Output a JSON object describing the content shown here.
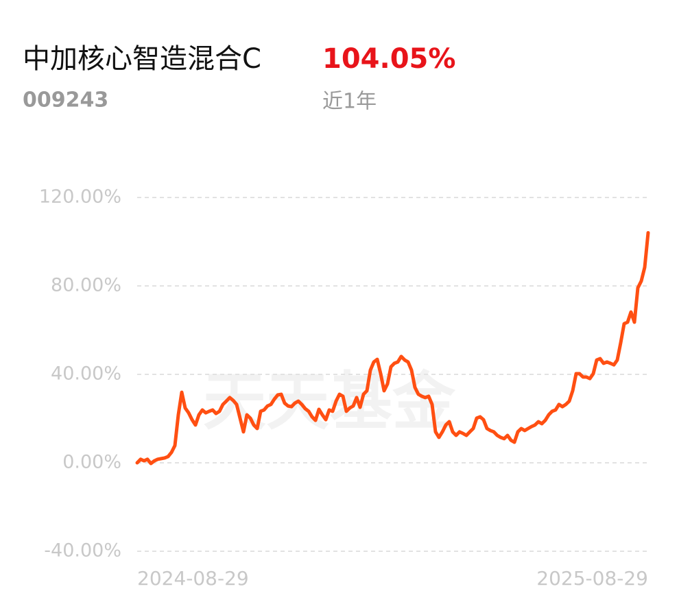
{
  "chart_data": {
    "type": "line",
    "title": "中加核心智造混合C",
    "return_label": "104.05%",
    "code": "009243",
    "period": "近1年",
    "watermark": "天天基金",
    "categories": [
      "2024-08-29",
      null,
      null,
      null,
      null,
      null,
      null,
      null,
      null,
      null,
      null,
      null,
      null,
      null,
      null,
      null,
      null,
      null,
      null,
      null,
      null,
      null,
      null,
      null,
      null,
      null,
      null,
      null,
      null,
      null,
      null,
      null,
      null,
      null,
      null,
      null,
      null,
      null,
      null,
      null,
      null,
      null,
      null,
      null,
      null,
      null,
      null,
      null,
      null,
      null,
      null,
      null,
      null,
      null,
      null,
      null,
      null,
      null,
      null,
      null,
      null,
      null,
      null,
      null,
      null,
      null,
      null,
      null,
      null,
      null,
      null,
      null,
      null,
      null,
      null,
      null,
      null,
      null,
      null,
      null,
      null,
      null,
      null,
      null,
      null,
      null,
      null,
      null,
      null,
      null,
      null,
      null,
      null,
      null,
      null,
      null,
      null,
      null,
      null,
      null,
      null,
      null,
      null,
      null,
      null,
      null,
      null,
      null,
      null,
      null,
      null,
      null,
      null,
      null,
      null,
      null,
      null,
      null,
      null,
      null,
      null,
      null,
      null,
      null,
      null,
      null,
      null,
      null,
      null,
      null,
      null,
      null,
      null,
      null,
      null,
      null,
      null,
      null,
      null,
      null,
      null,
      null,
      null,
      null,
      null,
      null,
      null,
      null,
      null,
      "2025-08-29"
    ],
    "series": [
      {
        "color": "#ff4f12",
        "values": [
          0,
          1.6,
          0.9,
          1.6,
          -0.3,
          0.9,
          1.6,
          1.9,
          2.2,
          2.8,
          4.7,
          7.8,
          21.7,
          31.9,
          24.8,
          22.6,
          19.5,
          17.1,
          21.7,
          23.9,
          22.6,
          23.3,
          23.9,
          22.3,
          23.3,
          26.4,
          27.9,
          29.5,
          28.2,
          26.4,
          20.2,
          14.0,
          21.7,
          20.2,
          17.1,
          15.5,
          23.3,
          23.9,
          25.7,
          26.4,
          28.8,
          30.7,
          31.0,
          27.0,
          25.7,
          25.4,
          27.0,
          27.9,
          26.4,
          24.5,
          23.3,
          20.8,
          19.2,
          24.2,
          21.7,
          19.5,
          23.9,
          23.3,
          27.9,
          31.0,
          30.1,
          23.3,
          24.8,
          25.7,
          29.5,
          25.1,
          31.0,
          32.6,
          41.9,
          45.6,
          46.8,
          40.3,
          32.6,
          35.7,
          43.4,
          45.0,
          45.6,
          48.1,
          46.5,
          45.6,
          41.9,
          34.1,
          31.0,
          30.1,
          29.5,
          30.1,
          26.4,
          14.0,
          11.5,
          14.0,
          17.1,
          18.6,
          14.0,
          12.4,
          14.0,
          13.3,
          12.4,
          14.0,
          15.5,
          20.2,
          20.8,
          19.5,
          15.5,
          14.6,
          14.0,
          12.4,
          11.5,
          10.9,
          12.4,
          10.2,
          9.3,
          14.0,
          15.5,
          14.6,
          15.5,
          16.4,
          17.1,
          18.6,
          17.7,
          19.2,
          21.7,
          23.3,
          23.9,
          26.4,
          25.4,
          26.4,
          27.9,
          32.6,
          40.3,
          40.3,
          38.8,
          38.8,
          38.1,
          40.3,
          46.5,
          47.1,
          45.0,
          45.6,
          45.0,
          44.3,
          46.5,
          54.3,
          62.9,
          63.6,
          68.2,
          63.6,
          79.1,
          82.2,
          88.4,
          104.05
        ]
      }
    ],
    "ylim": [
      -40,
      120
    ],
    "yticks": [
      {
        "value": -40,
        "label": "-40.00%"
      },
      {
        "value": 0,
        "label": "0.00%"
      },
      {
        "value": 40,
        "label": "40.00%"
      },
      {
        "value": 80,
        "label": "80.00%"
      },
      {
        "value": 120,
        "label": "120.00%"
      }
    ],
    "grid": true
  }
}
